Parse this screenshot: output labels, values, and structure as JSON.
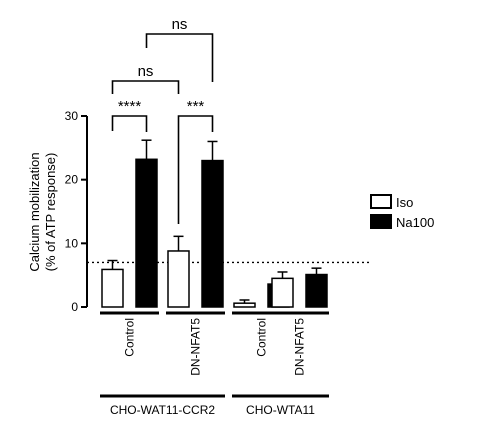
{
  "chart_data": {
    "type": "bar",
    "title": "",
    "ylabel_line1": "Calcium mobilization",
    "ylabel_line2": "(% of ATP response)",
    "ylim": [
      0,
      30
    ],
    "yticks": [
      "0",
      "10",
      "20",
      "30"
    ],
    "reference_line": 7,
    "groups": [
      {
        "label": "CHO-WAT11-CCR2",
        "subgroups": [
          "Control",
          "DN-NFAT5"
        ]
      },
      {
        "label": "CHO-WTA11",
        "subgroups": [
          "Control",
          "DN-NFAT5"
        ]
      }
    ],
    "categories": [
      "Control",
      "DN-NFAT5",
      "Control",
      "DN-NFAT5"
    ],
    "series": [
      {
        "name": "Iso",
        "color": "#ffffff",
        "values": [
          5.9,
          8.8,
          0.6,
          4.5
        ],
        "errors": [
          1.4,
          2.3,
          0.5,
          1.0
        ]
      },
      {
        "name": "Na100",
        "color": "#000000",
        "values": [
          23.2,
          23.0,
          3.6,
          5.1
        ],
        "errors": [
          3.0,
          3.0,
          0.8,
          1.0
        ]
      }
    ],
    "significance": [
      {
        "label": "****"
      },
      {
        "label": "***"
      },
      {
        "label": "ns"
      },
      {
        "label": "ns"
      }
    ]
  }
}
